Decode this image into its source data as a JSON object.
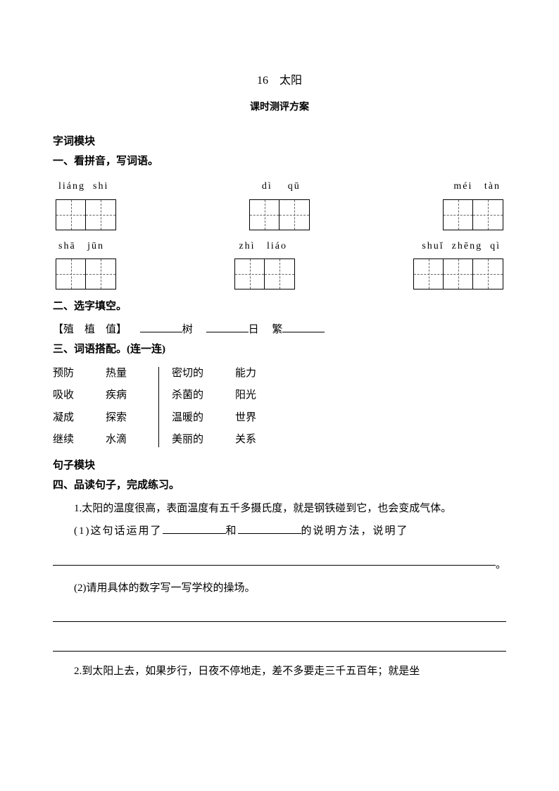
{
  "title": "16　太阳",
  "subtitle": "课时测评方案",
  "module1": "字词模块",
  "q1": {
    "heading": "一、看拼音，写词语。",
    "row1": [
      "liáng  shi",
      "dì    qū",
      "méi   tàn"
    ],
    "row2": [
      "shā   jūn",
      "zhì   liáo",
      "shuǐ  zhēng  qì"
    ],
    "box_cells": {
      "r1": [
        2,
        2,
        2
      ],
      "r2": [
        2,
        2,
        3
      ]
    }
  },
  "q2": {
    "heading": "二、选字填空。",
    "choices": "【殖　植　值】",
    "items": [
      "树",
      "日",
      "繁"
    ]
  },
  "q3": {
    "heading": "三、词语搭配。(连一连)",
    "left1": [
      "预防",
      "吸收",
      "凝成",
      "继续"
    ],
    "left2": [
      "热量",
      "疾病",
      "探索",
      "水滴"
    ],
    "right1": [
      "密切的",
      "杀菌的",
      "温暖的",
      "美丽的"
    ],
    "right2": [
      "能力",
      "阳光",
      "世界",
      "关系"
    ]
  },
  "module2": "句子模块",
  "q4": {
    "heading": "四、品读句子，完成练习。",
    "s1": "1.太阳的温度很高，表面温度有五千多摄氏度，就是钢铁碰到它，也会变成气体。",
    "s1q1a": "(1)这句话运用了",
    "s1q1b": "和",
    "s1q1c": "的说明方法，说明了",
    "s1q2": "(2)请用具体的数字写一写学校的操场。",
    "s2": "2.到太阳上去，如果步行，日夜不停地走，差不多要走三千五百年；就是坐"
  },
  "period": "。"
}
